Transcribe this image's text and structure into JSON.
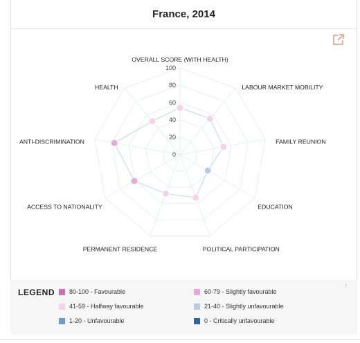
{
  "title": "France, 2014",
  "icons": {
    "external_link": "external-link-icon",
    "collapse": "arrow-up-icon"
  },
  "colors": {
    "series_line": "#bcd7ea",
    "grid": "#e8eef4",
    "external_link": "#e8907a"
  },
  "legend": {
    "title": "LEGEND",
    "items": [
      {
        "label": "80-100 - Favourable",
        "color": "#cc6fb5"
      },
      {
        "label": "60-79 - Slightly favourable",
        "color": "#e7a9d6"
      },
      {
        "label": "41-59 - Halfway favourable",
        "color": "#f2d3ea"
      },
      {
        "label": "21-40 - Slightly unfavourable",
        "color": "#b8cbe4"
      },
      {
        "label": "1-20 - Unfavourable",
        "color": "#7398c8"
      },
      {
        "label": "0 - Critically unfavourable",
        "color": "#36639b"
      }
    ],
    "collapse_glyph": "↑"
  },
  "chart_data": {
    "type": "radar",
    "title": "France, 2014",
    "axes": [
      "OVERALL SCORE (WITH HEALTH)",
      "LABOUR MARKET MOBILITY",
      "FAMILY REUNION",
      "EDUCATION",
      "POLITICAL PARTICIPATION",
      "PERMANENT RESIDENCE",
      "ACCESS TO NATIONALITY",
      "ANTI-DISCRIMINATION",
      "HEALTH"
    ],
    "radial_ticks": [
      0,
      20,
      40,
      60,
      80,
      100
    ],
    "range": [
      0,
      100
    ],
    "series": [
      {
        "values": [
          54,
          54,
          51,
          37,
          53,
          48,
          61,
          77,
          50
        ]
      }
    ]
  }
}
